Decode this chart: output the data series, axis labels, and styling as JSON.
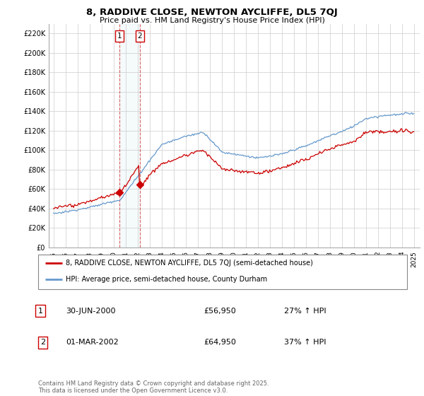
{
  "title": "8, RADDIVE CLOSE, NEWTON AYCLIFFE, DL5 7QJ",
  "subtitle": "Price paid vs. HM Land Registry's House Price Index (HPI)",
  "legend_line1": "8, RADDIVE CLOSE, NEWTON AYCLIFFE, DL5 7QJ (semi-detached house)",
  "legend_line2": "HPI: Average price, semi-detached house, County Durham",
  "transaction1_date": "30-JUN-2000",
  "transaction1_price": "£56,950",
  "transaction1_hpi": "27% ↑ HPI",
  "transaction2_date": "01-MAR-2002",
  "transaction2_price": "£64,950",
  "transaction2_hpi": "37% ↑ HPI",
  "footer": "Contains HM Land Registry data © Crown copyright and database right 2025.\nThis data is licensed under the Open Government Licence v3.0.",
  "line_color_red": "#cc0000",
  "line_color_blue": "#6699cc",
  "background_color": "#ffffff",
  "grid_color": "#cccccc",
  "ylim": [
    0,
    230000
  ],
  "yticks": [
    0,
    20000,
    40000,
    60000,
    80000,
    100000,
    120000,
    140000,
    160000,
    180000,
    200000,
    220000
  ],
  "transaction1_x": 2000.5,
  "transaction2_x": 2002.17,
  "transaction1_price_val": 56950,
  "transaction2_price_val": 64950,
  "hpi_base_2000": 44000,
  "hpi_base_2002": 49000
}
